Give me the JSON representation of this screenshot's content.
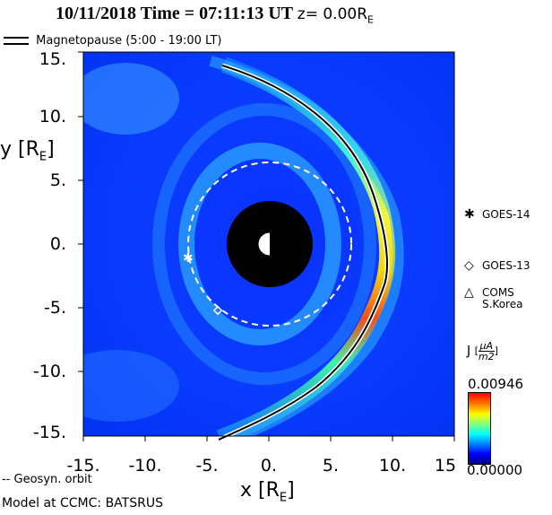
{
  "header": {
    "date": "10/11/2018",
    "time_label": "Time",
    "equals": "=",
    "time": "07:11:13",
    "tz": "UT",
    "z_text": "z= 0.00R",
    "z_sub": "E"
  },
  "legend_top": {
    "label": "Magnetopause (5:00 - 19:00 LT)"
  },
  "axes": {
    "ylabel": "y [R",
    "ylabel_sub": "E",
    "ylabel_end": "]",
    "xlabel": "x [R",
    "xlabel_sub": "E",
    "xlabel_end": "]",
    "xticks": [
      "-15.",
      "-10.",
      "-5.",
      "0.",
      "5.",
      "10.",
      "15"
    ],
    "yticks": [
      "15.",
      "10.",
      "5.",
      "0.",
      "-5.",
      "-10.",
      "-15."
    ]
  },
  "satellites": {
    "goes14": {
      "symbol": "✱",
      "label": "GOES-14"
    },
    "goes13": {
      "symbol": "◇",
      "label": "GOES-13"
    },
    "coms": {
      "symbol": "△",
      "label_line1": "COMS",
      "label_line2": "S.Korea"
    }
  },
  "colorbar": {
    "label_j": "J",
    "label_num": "μA",
    "label_den": "m2",
    "max": "0.00946",
    "min": "0.00000",
    "colors": [
      "#00007f",
      "#0000ff",
      "#0080ff",
      "#00ffff",
      "#80ff80",
      "#ffff00",
      "#ff8000",
      "#ff0000"
    ]
  },
  "footer": {
    "geo_label": "-- Geosyn. orbit",
    "model_label": "Model at CCMC: BATSRUS"
  },
  "chart_data": {
    "type": "heatmap",
    "xlim": [
      -15,
      15
    ],
    "ylim": [
      -15,
      15
    ],
    "earth_radius": 3.5,
    "geosync_radius": 6.6,
    "colorbar_range": [
      0.0,
      0.00946
    ],
    "magnetopause": [
      {
        "x": -3.8,
        "y": 14.4
      },
      {
        "x": 0,
        "y": 13.4
      },
      {
        "x": 3,
        "y": 11.8
      },
      {
        "x": 5.6,
        "y": 9.2
      },
      {
        "x": 7.6,
        "y": 6.2
      },
      {
        "x": 9.0,
        "y": 2.6
      },
      {
        "x": 9.6,
        "y": 0
      },
      {
        "x": 9.4,
        "y": -2.6
      },
      {
        "x": 8.4,
        "y": -5.4
      },
      {
        "x": 6.6,
        "y": -8.4
      },
      {
        "x": 4.4,
        "y": -10.8
      },
      {
        "x": 1.5,
        "y": -12.8
      },
      {
        "x": -1.5,
        "y": -14.0
      },
      {
        "x": -4.0,
        "y": -15.0
      }
    ],
    "satellites": [
      {
        "name": "GOES-14",
        "x": -6.5,
        "y": -1.0
      },
      {
        "name": "GOES-13",
        "x": -4.0,
        "y": -5.2
      }
    ]
  }
}
